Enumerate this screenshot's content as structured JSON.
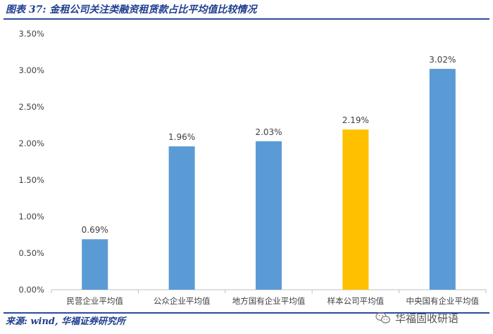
{
  "figure": {
    "title": "图表 37: 金租公司关注类融资租赁款占比平均值比较情况",
    "source": "来源: wind, 华福证券研究所",
    "watermark": "华福固收研语"
  },
  "chart_data": {
    "type": "bar",
    "categories": [
      "民营企业平均值",
      "公众企业平均值",
      "地方国有企业平均值",
      "样本公司平均值",
      "中央国有企业平均值"
    ],
    "values": [
      0.69,
      1.96,
      2.03,
      2.19,
      3.02
    ],
    "value_labels": [
      "0.69%",
      "1.96%",
      "2.03%",
      "2.19%",
      "3.02%"
    ],
    "colors": [
      "#5b9bd5",
      "#5b9bd5",
      "#5b9bd5",
      "#ffc000",
      "#5b9bd5"
    ],
    "y_ticks": [
      "0.00%",
      "0.50%",
      "1.00%",
      "1.50%",
      "2.00%",
      "2.50%",
      "3.00%",
      "3.50%"
    ],
    "ylim": [
      0,
      3.5
    ],
    "grid": false,
    "legend": "none"
  }
}
